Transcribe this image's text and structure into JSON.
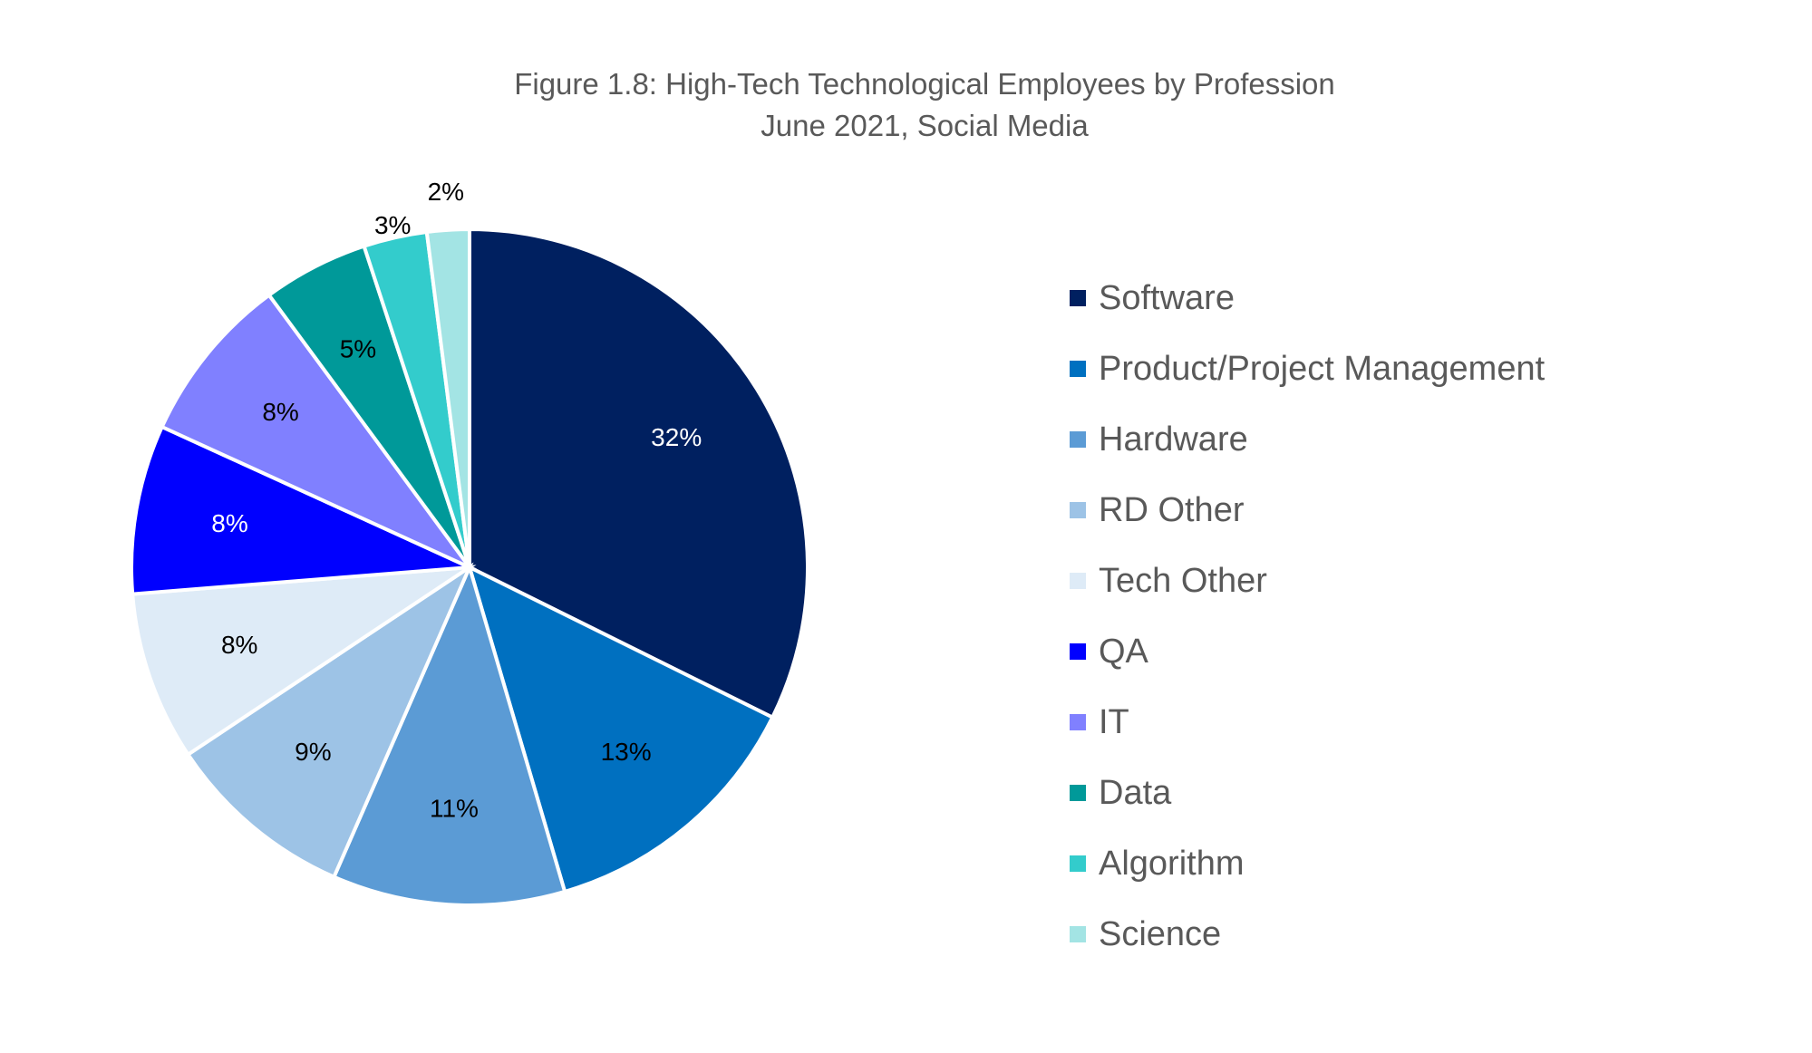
{
  "chart_data": {
    "type": "pie",
    "title": "Figure 1.8: High-Tech Technological Employees by Profession",
    "subtitle": "June 2021, Social Media",
    "legend_position": "right",
    "slices": [
      {
        "label": "Software",
        "value": 32,
        "display": "32%",
        "color": "#002060",
        "label_color": "#ffffff"
      },
      {
        "label": "Product/Project Management",
        "value": 13,
        "display": "13%",
        "color": "#0070c0",
        "label_color": "#000000"
      },
      {
        "label": "Hardware",
        "value": 11,
        "display": "11%",
        "color": "#5b9bd5",
        "label_color": "#000000"
      },
      {
        "label": "RD Other",
        "value": 9,
        "display": "9%",
        "color": "#9dc3e6",
        "label_color": "#000000"
      },
      {
        "label": "Tech Other",
        "value": 8,
        "display": "8%",
        "color": "#deebf7",
        "label_color": "#000000"
      },
      {
        "label": "QA",
        "value": 8,
        "display": "8%",
        "color": "#0000ff",
        "label_color": "#ffffff"
      },
      {
        "label": "IT",
        "value": 8,
        "display": "8%",
        "color": "#8080ff",
        "label_color": "#000000"
      },
      {
        "label": "Data",
        "value": 5,
        "display": "5%",
        "color": "#009999",
        "label_color": "#000000"
      },
      {
        "label": "Algorithm",
        "value": 3,
        "display": "3%",
        "color": "#33cccc",
        "label_color": "#000000"
      },
      {
        "label": "Science",
        "value": 2,
        "display": "2%",
        "color": "#a3e4e4",
        "label_color": "#000000"
      }
    ]
  }
}
